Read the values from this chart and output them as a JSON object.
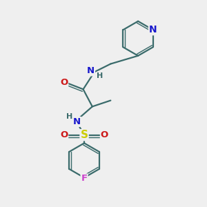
{
  "bg_color": "#efefef",
  "bond_color": "#3a6b6b",
  "bond_width": 1.6,
  "atom_colors": {
    "N": "#1818cc",
    "O": "#cc1818",
    "S": "#cccc00",
    "F": "#cc44cc",
    "C": "#3a6b6b",
    "H": "#3a6b6b"
  },
  "font_size": 9,
  "figsize": [
    3.0,
    3.0
  ],
  "dpi": 100
}
